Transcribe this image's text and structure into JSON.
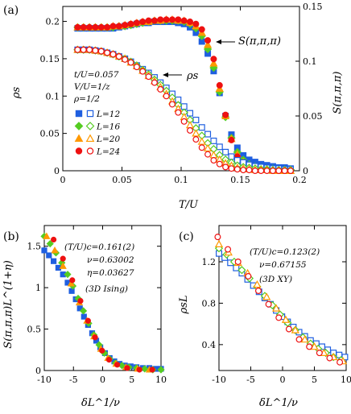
{
  "colors": {
    "L12": "#1f5fe0",
    "L16": "#55cc22",
    "L20": "#ff9900",
    "L24": "#ee1111"
  },
  "chart_data": [
    {
      "panel": "(a)",
      "type": "scatter",
      "xlabel": "T/U",
      "ylabel": "ρs",
      "y2label": "S(π,π,π)",
      "xlim": [
        0,
        0.2
      ],
      "ylim": [
        0,
        0.22
      ],
      "y2lim": [
        0,
        0.15
      ],
      "xticks": [
        "0",
        "0.05",
        "0.1",
        "0.15",
        "0.2"
      ],
      "yticks": [
        "0",
        "0.05",
        "0.1",
        "0.15",
        "0.2"
      ],
      "y2ticks": [
        "0",
        "0.05",
        "0.1",
        "0.15"
      ],
      "annotations": {
        "rho_label": "ρs",
        "s_label": "S(π,π,π)",
        "params": [
          "t/U=0.057",
          "V/U=1/z",
          "ρ=1/2"
        ]
      },
      "legend": [
        {
          "name": "L=12",
          "filled": "square",
          "open": "square",
          "color": "#1f5fe0"
        },
        {
          "name": "L=16",
          "filled": "diamond",
          "open": "diamond",
          "color": "#55cc22"
        },
        {
          "name": "L=20",
          "filled": "triangle",
          "open": "triangle",
          "color": "#ff9900"
        },
        {
          "name": "L=24",
          "filled": "circle",
          "open": "circle",
          "color": "#ee1111"
        }
      ],
      "legend_position": "left",
      "x": [
        0.0125,
        0.0175,
        0.0225,
        0.0275,
        0.0325,
        0.0375,
        0.0425,
        0.0475,
        0.0525,
        0.0575,
        0.0625,
        0.0675,
        0.0725,
        0.0775,
        0.0825,
        0.0875,
        0.0925,
        0.0975,
        0.1025,
        0.1075,
        0.1125,
        0.1175,
        0.1225,
        0.1275,
        0.1325,
        0.1375,
        0.1425,
        0.1475,
        0.1525,
        0.1575,
        0.1625,
        0.1675,
        0.1725,
        0.1775,
        0.1825,
        0.1875,
        0.1925
      ],
      "series": [
        {
          "name": "S L=12",
          "axis": "right",
          "marker": "square",
          "filled": true,
          "color": "#1f5fe0",
          "values": [
            0.13,
            0.13,
            0.13,
            0.13,
            0.13,
            0.13,
            0.13,
            0.131,
            0.132,
            0.133,
            0.134,
            0.135,
            0.135,
            0.136,
            0.136,
            0.136,
            0.136,
            0.135,
            0.134,
            0.131,
            0.126,
            0.118,
            0.107,
            0.091,
            0.071,
            0.05,
            0.033,
            0.021,
            0.014,
            0.01,
            0.008,
            0.006,
            0.005,
            0.004,
            0.003,
            0.003,
            0.002
          ]
        },
        {
          "name": "S L=16",
          "axis": "right",
          "marker": "diamond",
          "filled": true,
          "color": "#55cc22",
          "values": [
            0.131,
            0.131,
            0.131,
            0.131,
            0.131,
            0.131,
            0.131,
            0.132,
            0.132,
            0.133,
            0.134,
            0.135,
            0.136,
            0.137,
            0.137,
            0.137,
            0.137,
            0.137,
            0.136,
            0.134,
            0.13,
            0.123,
            0.111,
            0.094,
            0.072,
            0.049,
            0.03,
            0.017,
            0.01,
            0.006,
            0.004,
            0.003,
            0.002,
            0.002,
            0.001,
            0.001,
            0.001
          ]
        },
        {
          "name": "S L=20",
          "axis": "right",
          "marker": "triangle",
          "filled": true,
          "color": "#ff9900",
          "values": [
            0.131,
            0.131,
            0.131,
            0.131,
            0.131,
            0.131,
            0.132,
            0.132,
            0.133,
            0.134,
            0.135,
            0.136,
            0.136,
            0.137,
            0.137,
            0.138,
            0.138,
            0.137,
            0.137,
            0.135,
            0.132,
            0.126,
            0.115,
            0.098,
            0.075,
            0.05,
            0.029,
            0.015,
            0.008,
            0.004,
            0.003,
            0.002,
            0.001,
            0.001,
            0.001,
            0.0,
            0.0
          ]
        },
        {
          "name": "S L=24",
          "axis": "right",
          "marker": "circle",
          "filled": true,
          "color": "#ee1111",
          "values": [
            0.131,
            0.131,
            0.131,
            0.131,
            0.131,
            0.131,
            0.132,
            0.132,
            0.133,
            0.134,
            0.135,
            0.136,
            0.137,
            0.137,
            0.138,
            0.138,
            0.138,
            0.138,
            0.137,
            0.136,
            0.134,
            0.129,
            0.119,
            0.102,
            0.078,
            0.051,
            0.028,
            0.013,
            0.006,
            0.003,
            0.002,
            0.001,
            0.001,
            0.0,
            0.0,
            0.0,
            0.0
          ]
        },
        {
          "name": "ρs L=12",
          "axis": "left",
          "marker": "square",
          "filled": false,
          "color": "#1f5fe0",
          "values": [
            0.162,
            0.162,
            0.162,
            0.161,
            0.16,
            0.158,
            0.156,
            0.153,
            0.15,
            0.146,
            0.141,
            0.136,
            0.131,
            0.125,
            0.118,
            0.111,
            0.103,
            0.095,
            0.086,
            0.077,
            0.068,
            0.058,
            0.049,
            0.04,
            0.032,
            0.025,
            0.019,
            0.014,
            0.011,
            0.008,
            0.006,
            0.005,
            0.004,
            0.003,
            0.003,
            0.002,
            0.002
          ]
        },
        {
          "name": "ρs L=16",
          "axis": "left",
          "marker": "diamond",
          "filled": false,
          "color": "#55cc22",
          "values": [
            0.162,
            0.162,
            0.162,
            0.161,
            0.16,
            0.158,
            0.156,
            0.153,
            0.15,
            0.146,
            0.141,
            0.135,
            0.129,
            0.122,
            0.115,
            0.107,
            0.098,
            0.088,
            0.078,
            0.068,
            0.057,
            0.047,
            0.037,
            0.029,
            0.021,
            0.015,
            0.011,
            0.007,
            0.005,
            0.004,
            0.003,
            0.002,
            0.002,
            0.001,
            0.001,
            0.001,
            0.001
          ]
        },
        {
          "name": "ρs L=20",
          "axis": "left",
          "marker": "triangle",
          "filled": false,
          "color": "#ff9900",
          "values": [
            0.162,
            0.162,
            0.162,
            0.161,
            0.16,
            0.158,
            0.156,
            0.153,
            0.15,
            0.145,
            0.14,
            0.134,
            0.127,
            0.12,
            0.112,
            0.103,
            0.093,
            0.083,
            0.072,
            0.061,
            0.05,
            0.039,
            0.03,
            0.021,
            0.015,
            0.01,
            0.007,
            0.004,
            0.003,
            0.002,
            0.001,
            0.001,
            0.001,
            0.0,
            0.0,
            0.0,
            0.0
          ]
        },
        {
          "name": "ρs L=24",
          "axis": "left",
          "marker": "circle",
          "filled": false,
          "color": "#ee1111",
          "values": [
            0.162,
            0.162,
            0.162,
            0.161,
            0.16,
            0.158,
            0.156,
            0.153,
            0.149,
            0.145,
            0.139,
            0.133,
            0.126,
            0.118,
            0.109,
            0.1,
            0.089,
            0.078,
            0.066,
            0.054,
            0.042,
            0.031,
            0.022,
            0.014,
            0.009,
            0.005,
            0.003,
            0.002,
            0.001,
            0.001,
            0.0,
            0.0,
            0.0,
            0.0,
            0.0,
            0.0,
            0.0
          ]
        }
      ]
    },
    {
      "panel": "(b)",
      "type": "scatter",
      "xlabel": "δL^1/ν",
      "ylabel": "S(π,π,π)L^(1+η)",
      "xlim": [
        -10,
        10
      ],
      "ylim": [
        0,
        1.75
      ],
      "xticks": [
        "-10",
        "-5",
        "0",
        "5",
        "10"
      ],
      "yticks": [
        "0",
        "0.5",
        "1",
        "1.5"
      ],
      "annotations": [
        "(T/U)c=0.161(2)",
        "ν=0.63002",
        "η=0.03627",
        "(3D Ising)"
      ],
      "series": [
        {
          "name": "L=12",
          "marker": "square",
          "filled": true,
          "color": "#1f5fe0",
          "x": [
            -10.0,
            -9.2,
            -8.4,
            -7.6,
            -6.8,
            -6.0,
            -5.3,
            -4.6,
            -3.9,
            -3.2,
            -2.5,
            -1.8,
            -1.1,
            -0.4,
            0.4,
            1.2,
            2.0,
            2.9,
            3.8,
            4.8,
            5.8,
            6.9,
            8.0,
            9.1,
            10.0
          ],
          "values": [
            1.45,
            1.39,
            1.32,
            1.24,
            1.16,
            1.06,
            0.96,
            0.86,
            0.75,
            0.65,
            0.55,
            0.45,
            0.36,
            0.28,
            0.21,
            0.15,
            0.11,
            0.08,
            0.06,
            0.05,
            0.04,
            0.03,
            0.03,
            0.02,
            0.02
          ]
        },
        {
          "name": "L=16",
          "marker": "diamond",
          "filled": true,
          "color": "#55cc22",
          "x": [
            -10.0,
            -9.0,
            -8.0,
            -7.0,
            -6.0,
            -5.1,
            -4.2,
            -3.3,
            -2.4,
            -1.5,
            -0.6,
            0.3,
            1.2,
            2.2,
            3.3,
            4.5,
            5.8,
            7.2,
            8.6,
            10.0
          ],
          "values": [
            1.62,
            1.53,
            1.42,
            1.3,
            1.16,
            1.02,
            0.87,
            0.72,
            0.57,
            0.43,
            0.31,
            0.21,
            0.14,
            0.09,
            0.06,
            0.04,
            0.03,
            0.02,
            0.01,
            0.01
          ]
        },
        {
          "name": "L=20",
          "marker": "triangle",
          "filled": true,
          "color": "#ff9900",
          "x": [
            -9.6,
            -8.2,
            -6.8,
            -5.4,
            -4.0,
            -2.7,
            -1.5,
            -0.3,
            0.9,
            2.3,
            4.0,
            6.0,
            8.0
          ],
          "values": [
            1.62,
            1.45,
            1.26,
            1.05,
            0.82,
            0.6,
            0.41,
            0.26,
            0.15,
            0.08,
            0.04,
            0.02,
            0.01
          ]
        },
        {
          "name": "L=24",
          "marker": "circle",
          "filled": true,
          "color": "#ee1111",
          "x": [
            -10.0,
            -8.4,
            -6.8,
            -5.2,
            -3.8,
            -2.5,
            -1.3,
            -0.1,
            1.1,
            2.5,
            4.2,
            6.3,
            8.5
          ],
          "values": [
            1.77,
            1.58,
            1.35,
            1.09,
            0.84,
            0.6,
            0.4,
            0.24,
            0.13,
            0.07,
            0.03,
            0.01,
            0.01
          ]
        }
      ]
    },
    {
      "panel": "(c)",
      "type": "scatter",
      "xlabel": "δL^1/ν",
      "ylabel": "ρsL",
      "xlim": [
        -10,
        10
      ],
      "ylim": [
        0.15,
        1.55
      ],
      "xticks": [
        "-10",
        "-5",
        "0",
        "5",
        "10"
      ],
      "yticks": [
        "0.4",
        "0.8",
        "1.2"
      ],
      "annotations": [
        "(T/U)c=0.123(2)",
        "ν=0.67155",
        "(3D XY)"
      ],
      "series": [
        {
          "name": "L=12",
          "marker": "square",
          "filled": false,
          "color": "#1f5fe0",
          "x": [
            -10.0,
            -9.1,
            -8.2,
            -7.3,
            -6.4,
            -5.5,
            -4.6,
            -3.7,
            -2.8,
            -1.9,
            -1.0,
            -0.1,
            0.8,
            1.7,
            2.6,
            3.5,
            4.4,
            5.3,
            6.2,
            7.1,
            8.0,
            8.9,
            9.8
          ],
          "values": [
            1.28,
            1.24,
            1.19,
            1.14,
            1.09,
            1.03,
            0.97,
            0.91,
            0.85,
            0.79,
            0.73,
            0.67,
            0.62,
            0.57,
            0.52,
            0.48,
            0.44,
            0.41,
            0.38,
            0.35,
            0.32,
            0.3,
            0.28
          ]
        },
        {
          "name": "L=16",
          "marker": "diamond",
          "filled": false,
          "color": "#55cc22",
          "x": [
            -10.0,
            -8.8,
            -7.6,
            -6.4,
            -5.2,
            -4.0,
            -2.8,
            -1.6,
            -0.4,
            0.8,
            2.0,
            3.2,
            4.4,
            5.6,
            6.8,
            8.0,
            9.2
          ],
          "values": [
            1.33,
            1.27,
            1.2,
            1.12,
            1.04,
            0.96,
            0.87,
            0.78,
            0.69,
            0.61,
            0.54,
            0.47,
            0.41,
            0.36,
            0.32,
            0.28,
            0.25
          ]
        },
        {
          "name": "L=20",
          "marker": "triangle",
          "filled": false,
          "color": "#ff9900",
          "x": [
            -10.0,
            -8.5,
            -7.0,
            -5.5,
            -4.0,
            -2.5,
            -1.0,
            0.5,
            2.0,
            3.5,
            5.0,
            6.5,
            8.0,
            9.5
          ],
          "values": [
            1.37,
            1.29,
            1.19,
            1.09,
            0.98,
            0.86,
            0.75,
            0.64,
            0.54,
            0.45,
            0.38,
            0.32,
            0.28,
            0.24
          ]
        },
        {
          "name": "L=24",
          "marker": "circle",
          "filled": false,
          "color": "#ee1111",
          "x": [
            -10.2,
            -8.6,
            -7.0,
            -5.4,
            -3.8,
            -2.2,
            -0.6,
            1.0,
            2.6,
            4.2,
            5.8,
            7.4,
            9.0
          ],
          "values": [
            1.44,
            1.32,
            1.2,
            1.06,
            0.92,
            0.79,
            0.66,
            0.55,
            0.45,
            0.38,
            0.32,
            0.27,
            0.23
          ]
        }
      ]
    }
  ]
}
